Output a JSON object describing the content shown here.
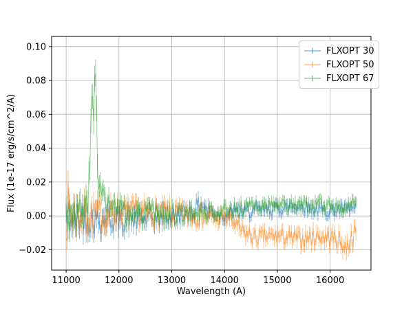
{
  "chart_data": {
    "type": "line",
    "variant": "errorbar-spectrum",
    "title": "",
    "xlabel": "Wavelength (A)",
    "ylabel": "Flux (1e-17 erg/s/cm^2/A)",
    "xlim": [
      10725,
      16775
    ],
    "ylim": [
      -0.032,
      0.106
    ],
    "xticks": [
      11000,
      12000,
      13000,
      14000,
      15000,
      16000
    ],
    "xtick_labels": [
      "11000",
      "12000",
      "13000",
      "14000",
      "15000",
      "16000"
    ],
    "yticks": [
      -0.02,
      0.0,
      0.02,
      0.04,
      0.06,
      0.08,
      0.1
    ],
    "ytick_labels": [
      "−0.02",
      "0.00",
      "0.02",
      "0.04",
      "0.06",
      "0.08",
      "0.10"
    ],
    "grid": true,
    "grid_color": "#b0b0b0",
    "frame_color": "#000000",
    "background_color": "#ffffff",
    "legend_position": "upper right",
    "line_alpha": 0.5,
    "x_start": 11000,
    "x_end": 16500,
    "x_step": 18,
    "clip_y": [
      -0.0295,
      0.0995
    ],
    "series": [
      {
        "name": "FLXOPT 30",
        "color": "#1f77b4",
        "seed": 42,
        "baseline": [
          [
            11000,
            -0.001
          ],
          [
            11600,
            -0.002
          ],
          [
            12600,
            -0.002
          ],
          [
            13100,
            0.0
          ],
          [
            13450,
            0.004
          ],
          [
            13550,
            0.008
          ],
          [
            13650,
            0.004
          ],
          [
            13900,
            0.001
          ],
          [
            14300,
            0.002
          ],
          [
            15200,
            0.005
          ],
          [
            15500,
            0.006
          ],
          [
            15800,
            0.003
          ],
          [
            16500,
            0.004
          ]
        ],
        "noise": [
          [
            11000,
            0.014
          ],
          [
            11300,
            0.01
          ],
          [
            12000,
            0.008
          ],
          [
            13000,
            0.006
          ],
          [
            13800,
            0.005
          ],
          [
            14500,
            0.004
          ],
          [
            16500,
            0.004
          ]
        ],
        "err": [
          [
            11000,
            0.006
          ],
          [
            12000,
            0.0045
          ],
          [
            13000,
            0.0035
          ],
          [
            14000,
            0.003
          ],
          [
            16500,
            0.003
          ]
        ]
      },
      {
        "name": "FLXOPT 50",
        "color": "#ff7f0e",
        "seed": 7,
        "baseline": [
          [
            11000,
            0.004
          ],
          [
            11150,
            0.0
          ],
          [
            12300,
            0.002
          ],
          [
            13200,
            0.001
          ],
          [
            13800,
            -0.001
          ],
          [
            14100,
            -0.002
          ],
          [
            14350,
            -0.01
          ],
          [
            14600,
            -0.013
          ],
          [
            15000,
            -0.012
          ],
          [
            15400,
            -0.014
          ],
          [
            15800,
            -0.012
          ],
          [
            16150,
            -0.014
          ],
          [
            16300,
            -0.019
          ],
          [
            16400,
            -0.013
          ],
          [
            16500,
            -0.01
          ]
        ],
        "noise": [
          [
            11000,
            0.019
          ],
          [
            11250,
            0.011
          ],
          [
            12000,
            0.008
          ],
          [
            13000,
            0.007
          ],
          [
            14000,
            0.005
          ],
          [
            15000,
            0.005
          ],
          [
            16500,
            0.006
          ]
        ],
        "err": [
          [
            11000,
            0.007
          ],
          [
            12000,
            0.0045
          ],
          [
            13500,
            0.0035
          ],
          [
            14500,
            0.0035
          ],
          [
            16500,
            0.004
          ]
        ]
      },
      {
        "name": "FLXOPT 67",
        "color": "#2ca02c",
        "seed": 3,
        "baseline": [
          [
            11000,
            0.001
          ],
          [
            11340,
            0.003
          ],
          [
            11420,
            0.01
          ],
          [
            11455,
            0.035
          ],
          [
            11480,
            0.06
          ],
          [
            11500,
            0.078
          ],
          [
            11520,
            0.048
          ],
          [
            11545,
            0.097
          ],
          [
            11560,
            0.085
          ],
          [
            11585,
            0.045
          ],
          [
            11615,
            0.022
          ],
          [
            11660,
            0.01
          ],
          [
            11720,
            0.012
          ],
          [
            11780,
            0.008
          ],
          [
            11860,
            0.004
          ],
          [
            12100,
            0.001
          ],
          [
            13200,
            0.001
          ],
          [
            13900,
            0.003
          ],
          [
            14300,
            0.005
          ],
          [
            15000,
            0.006
          ],
          [
            16000,
            0.006
          ],
          [
            16500,
            0.006
          ]
        ],
        "noise": [
          [
            11000,
            0.012
          ],
          [
            11350,
            0.009
          ],
          [
            11700,
            0.009
          ],
          [
            12300,
            0.007
          ],
          [
            13200,
            0.006
          ],
          [
            14000,
            0.004
          ],
          [
            16500,
            0.0045
          ]
        ],
        "err": [
          [
            11000,
            0.005
          ],
          [
            11450,
            0.007
          ],
          [
            11560,
            0.008
          ],
          [
            11700,
            0.005
          ],
          [
            13000,
            0.003
          ],
          [
            16500,
            0.003
          ]
        ]
      }
    ]
  }
}
